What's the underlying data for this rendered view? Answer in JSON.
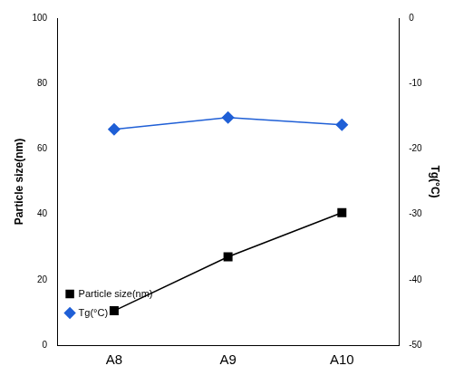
{
  "chart_data": {
    "type": "line",
    "categories": [
      "A8",
      "A9",
      "A10"
    ],
    "series": [
      {
        "name": "Particle size(nm)",
        "color": "#000000",
        "marker": "square",
        "values": [
          10.5,
          27,
          40.5
        ]
      },
      {
        "name": "Tg(°C)",
        "color": "#1f5fd6",
        "marker": "diamond",
        "values": [
          -17,
          -15.2,
          -16.3
        ],
        "axis": "y2"
      }
    ],
    "y_label": "Particle size(nm)",
    "y2_label": "Tg(°C)",
    "ylim": [
      0,
      100
    ],
    "yticks": [
      0,
      20,
      40,
      60,
      80,
      100
    ],
    "y2lim": [
      -50,
      0
    ],
    "y2ticks": [
      0,
      -10,
      -20,
      -30,
      -40,
      -50
    ],
    "grid": false,
    "legend": "upper right"
  }
}
